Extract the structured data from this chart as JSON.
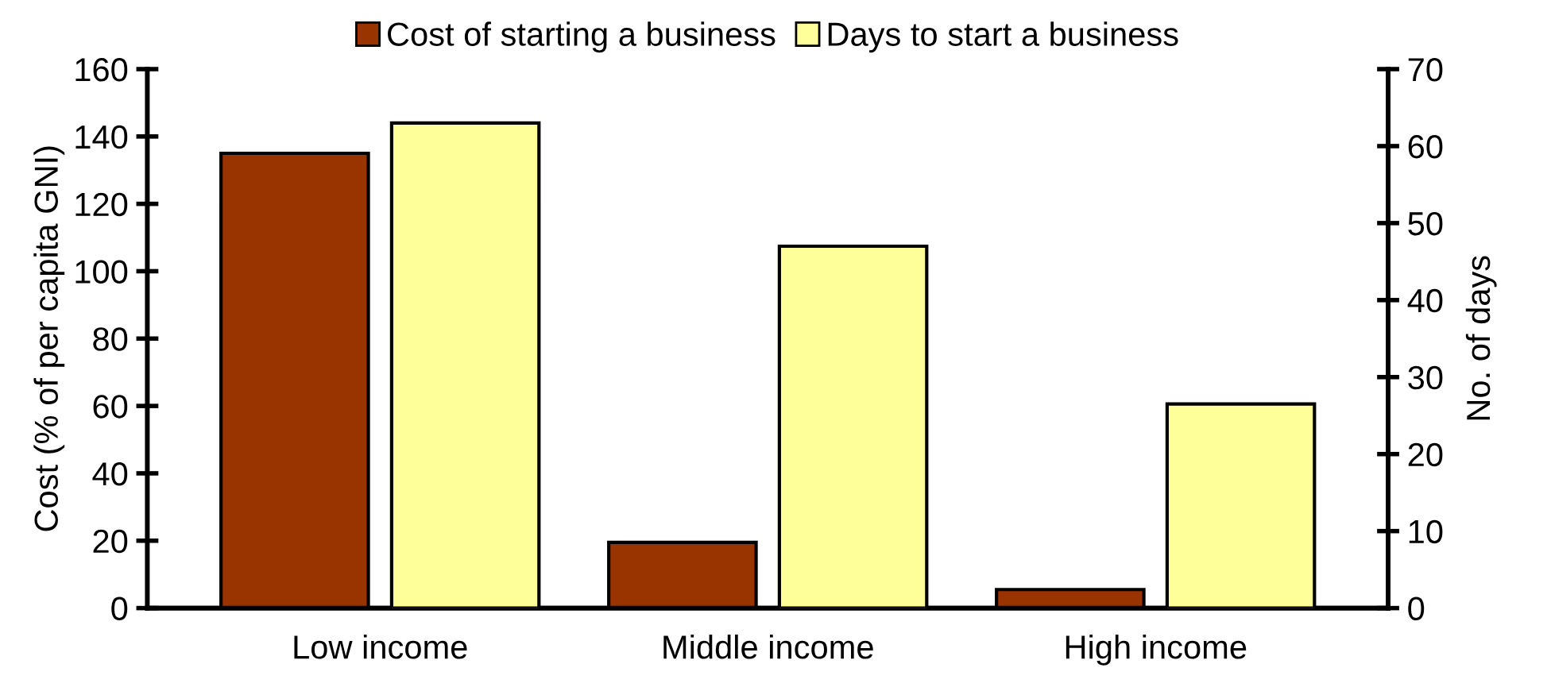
{
  "chart_data": {
    "type": "bar",
    "categories": [
      "Low income",
      "Middle income",
      "High income"
    ],
    "series": [
      {
        "name": "Cost of starting a business",
        "color": "#993300",
        "values": [
          135,
          19.5,
          5.5
        ]
      },
      {
        "name": "Days to start a business",
        "color": "#ffff99",
        "values": [
          63,
          47,
          26.5
        ],
        "axis": "y2"
      }
    ],
    "ylabel": "Cost (% of per capita GNI)",
    "y2label": "No. of days",
    "ylim": [
      0,
      160
    ],
    "yticks": [
      0,
      20,
      40,
      60,
      80,
      100,
      120,
      140,
      160
    ],
    "y2lim": [
      0,
      70
    ],
    "y2ticks": [
      0,
      10,
      20,
      30,
      40,
      50,
      60,
      70
    ],
    "legend": "top",
    "grid": false
  }
}
